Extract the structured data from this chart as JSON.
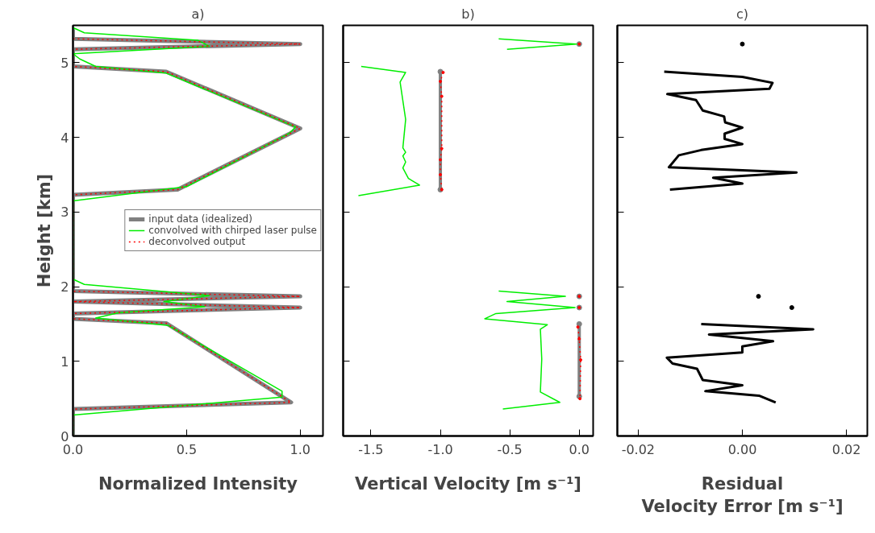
{
  "chart_data": [
    {
      "type": "line",
      "title": "a)",
      "xlabel": "Normalized Intensity",
      "ylabel": "Height [km]",
      "xlim": [
        0,
        1.1
      ],
      "ylim": [
        0,
        5.5
      ],
      "xticks": [
        {
          "value": 0,
          "label": "0.0"
        },
        {
          "value": 0.5,
          "label": "0.5"
        },
        {
          "value": 1.0,
          "label": "1.0"
        }
      ],
      "yticks": [
        0,
        1,
        2,
        3,
        4,
        5
      ],
      "grid": false,
      "legend": "right",
      "series": [
        {
          "name": "input data (idealized)",
          "color": "#808080",
          "line_style": "solid",
          "x": [
            0,
            0,
            1.0,
            0,
            0,
            0.41,
            1.0,
            0.46,
            0,
            0,
            1.0,
            0,
            1.0,
            0,
            0,
            0.41,
            0.96,
            0,
            0
          ],
          "values": [
            5.45,
            5.32,
            5.25,
            5.18,
            4.95,
            4.88,
            4.12,
            3.3,
            3.23,
            1.94,
            1.87,
            1.8,
            1.72,
            1.64,
            1.57,
            1.51,
            0.45,
            0.36,
            0
          ]
        },
        {
          "name": "convolved with chirped laser pulse",
          "color": "#00ee00",
          "line_style": "solid",
          "x": [
            0,
            0.05,
            0.55,
            0.6,
            0,
            0.03,
            0.1,
            0.41,
            0.98,
            0.95,
            0.5,
            0,
            0,
            0.05,
            0.6,
            0.4,
            0.58,
            0.2,
            0.1,
            0.42,
            0.92,
            0.92,
            0,
            0
          ],
          "values": [
            5.47,
            5.4,
            5.3,
            5.22,
            5.12,
            5.05,
            4.95,
            4.86,
            4.14,
            4.05,
            3.34,
            3.15,
            2.1,
            2.03,
            1.88,
            1.8,
            1.73,
            1.65,
            1.58,
            1.48,
            0.6,
            0.52,
            0.28,
            0
          ]
        },
        {
          "name": "deconvolved output",
          "color": "#ff0000",
          "line_style": "dotted",
          "x": [
            0,
            1.0,
            0,
            0,
            0.41,
            1.0,
            0.46,
            0,
            0,
            1.0,
            0,
            1.0,
            0,
            0,
            0.41,
            0.96,
            0,
            0
          ],
          "values": [
            5.32,
            5.25,
            5.18,
            4.95,
            4.88,
            4.12,
            3.3,
            3.23,
            1.94,
            1.87,
            1.8,
            1.72,
            1.64,
            1.57,
            1.51,
            0.45,
            0.36,
            0
          ]
        }
      ]
    },
    {
      "type": "line",
      "title": "b)",
      "xlabel": "Vertical Velocity [m s⁻¹]",
      "xlim": [
        -1.7,
        0.1
      ],
      "ylim": [
        0,
        5.5
      ],
      "tick_labels": "x",
      "xticks": [
        {
          "value": -1.5,
          "label": "-1.5"
        },
        {
          "value": -1.0,
          "label": "-1.0"
        },
        {
          "value": -0.5,
          "label": "-0.5"
        },
        {
          "value": 0,
          "label": "0.0"
        }
      ],
      "yticks": [
        0,
        1,
        2,
        3,
        4,
        5
      ],
      "grid": false,
      "series": [
        {
          "color": "#808080",
          "line_style": "solid",
          "marker": "circle",
          "x": [
            0,
            null,
            -1.0,
            -1.0,
            null,
            0,
            null,
            0,
            null,
            0,
            0
          ],
          "values": [
            5.25,
            null,
            4.88,
            3.3,
            null,
            1.87,
            null,
            1.72,
            null,
            1.5,
            0.53
          ]
        },
        {
          "color": "#00ee00",
          "line_style": "solid",
          "x": [
            -0.58,
            -0.02,
            -0.52,
            null,
            -1.57,
            -1.25,
            -1.29,
            -1.25,
            -1.27,
            -1.25,
            -1.27,
            -1.25,
            -1.27,
            -1.23,
            -1.15,
            -1.59,
            null,
            -0.58,
            -0.1,
            -0.52,
            -0.03,
            -0.6,
            -0.68,
            -0.23,
            -0.28,
            -0.27,
            -0.28,
            -0.14,
            -0.55
          ],
          "values": [
            5.32,
            5.25,
            5.18,
            null,
            4.95,
            4.87,
            4.74,
            4.24,
            3.86,
            3.8,
            3.75,
            3.67,
            3.59,
            3.45,
            3.36,
            3.22,
            null,
            1.94,
            1.87,
            1.8,
            1.72,
            1.64,
            1.57,
            1.49,
            1.43,
            1.03,
            0.59,
            0.45,
            0.36
          ]
        },
        {
          "color": "#ff0000",
          "line_style": "dotted",
          "marker": "circle",
          "x": [
            0,
            null,
            -0.98,
            -1.0,
            -0.99,
            -0.99,
            -1.0,
            -1.0,
            -0.99,
            null,
            0,
            null,
            0,
            null,
            -0.01,
            0,
            0.01,
            0.005
          ],
          "values": [
            5.25,
            null,
            4.87,
            4.75,
            4.55,
            3.85,
            3.7,
            3.5,
            3.3,
            null,
            1.87,
            null,
            1.72,
            null,
            1.46,
            1.3,
            1.02,
            0.5
          ]
        }
      ]
    },
    {
      "type": "line",
      "title": "c)",
      "xlabel": "Residual\nVelocity Error [m s⁻¹]",
      "xlim": [
        -0.024,
        0.024
      ],
      "ylim": [
        0,
        5.5
      ],
      "tick_labels": "x",
      "xticks": [
        {
          "value": -0.02,
          "label": "-0.02"
        },
        {
          "value": 0,
          "label": "0.00"
        },
        {
          "value": 0.02,
          "label": "0.02"
        }
      ],
      "yticks": [
        0,
        1,
        2,
        3,
        4,
        5
      ],
      "grid": false,
      "series": [
        {
          "color": "#000000",
          "line_style": "solid",
          "x": [
            -0.015,
            0,
            0.0058,
            0.0052,
            -0.0144,
            -0.0089,
            -0.0076,
            -0.0035,
            -0.0033,
            0,
            -0.0034,
            -0.0034,
            0,
            -0.0079,
            -0.0122,
            -0.0141,
            0.0104,
            -0.0056,
            0,
            -0.0139,
            null,
            -0.0079,
            0.0136,
            -0.0064,
            0.0059,
            0,
            0,
            -0.0145,
            -0.0134,
            -0.0087,
            -0.0076,
            0,
            -0.0071,
            0.0032,
            0.0064
          ],
          "values": [
            4.88,
            4.81,
            4.73,
            4.65,
            4.58,
            4.5,
            4.36,
            4.28,
            4.2,
            4.13,
            4.05,
            3.98,
            3.91,
            3.83,
            3.76,
            3.6,
            3.53,
            3.46,
            3.38,
            3.3,
            null,
            1.5,
            1.43,
            1.36,
            1.27,
            1.2,
            1.12,
            1.05,
            0.97,
            0.9,
            0.75,
            0.68,
            0.6,
            0.54,
            0.45
          ]
        },
        {
          "type": "scatter",
          "marker": "circle",
          "color": "#000000",
          "x": [
            0,
            0.0031,
            0.0095
          ],
          "values": [
            5.25,
            1.87,
            1.72
          ]
        }
      ]
    }
  ]
}
